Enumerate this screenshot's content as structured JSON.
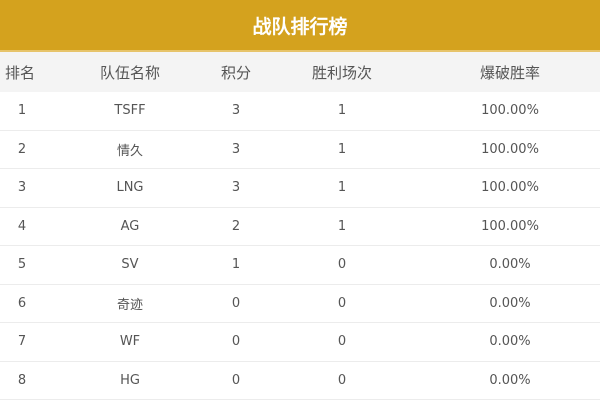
{
  "title": "战队排行榜",
  "colors": {
    "header_bg": "#d4a21e",
    "column_header_bg": "#f4f4f4"
  },
  "columns": [
    "排名",
    "队伍名称",
    "积分",
    "胜利场次",
    "爆破胜率"
  ],
  "rows": [
    [
      "1",
      "TSFF",
      "3",
      "1",
      "100.00%"
    ],
    [
      "2",
      "情久",
      "3",
      "1",
      "100.00%"
    ],
    [
      "3",
      "LNG",
      "3",
      "1",
      "100.00%"
    ],
    [
      "4",
      "AG",
      "2",
      "1",
      "100.00%"
    ],
    [
      "5",
      "SV",
      "1",
      "0",
      "0.00%"
    ],
    [
      "6",
      "奇迹",
      "0",
      "0",
      "0.00%"
    ],
    [
      "7",
      "WF",
      "0",
      "0",
      "0.00%"
    ],
    [
      "8",
      "HG",
      "0",
      "0",
      "0.00%"
    ]
  ]
}
